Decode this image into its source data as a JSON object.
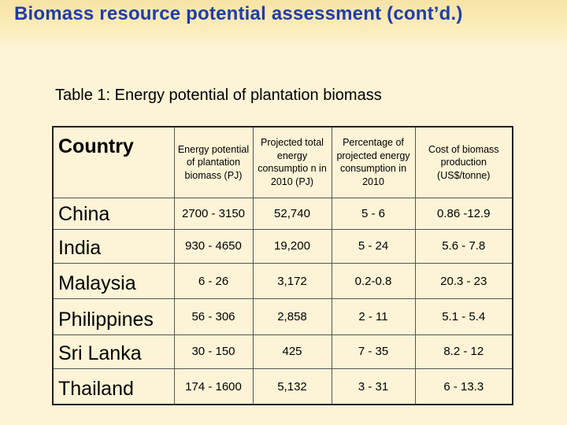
{
  "slide": {
    "title": "Biomass resource potential assessment (cont’d.)",
    "subtitle": "Table 1:  Energy potential of plantation biomass"
  },
  "table": {
    "headers": [
      "Country",
      "Energy potential of plantation biomass (PJ)",
      "Projected total energy consumptio n in 2010 (PJ)",
      "Percentage of projected energy consumption in 2010",
      "Cost of biomass production (US$/tonne)"
    ],
    "rows": [
      [
        "China",
        "2700 - 3150",
        "52,740",
        "5 - 6",
        "0.86 -12.9"
      ],
      [
        "India",
        "930 - 4650",
        "19,200",
        "5 - 24",
        "5.6 - 7.8"
      ],
      [
        "Malaysia",
        "6 - 26",
        "3,172",
        "0.2-0.8",
        "20.3 - 23"
      ],
      [
        "Philippines",
        "56 - 306",
        "2,858",
        "2 - 11",
        "5.1 - 5.4"
      ],
      [
        "Sri Lanka",
        "30 - 150",
        "425",
        "7 - 35",
        "8.2 - 12"
      ],
      [
        "Thailand",
        "174 - 1600",
        "5,132",
        "3 - 31",
        "6 - 13.3"
      ]
    ]
  },
  "colors": {
    "background": "#fdf3d6",
    "title": "#1f3caa"
  }
}
